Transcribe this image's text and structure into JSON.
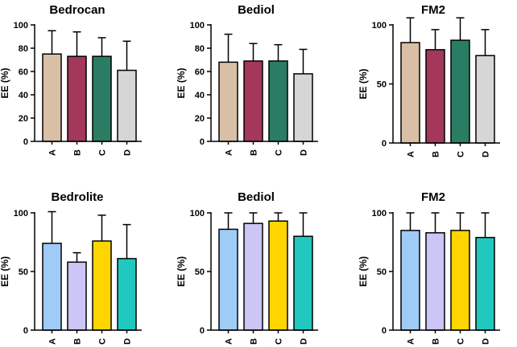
{
  "chart_data": [
    {
      "type": "bar",
      "title": "Bedrocan",
      "xlabel": "",
      "ylabel": "EE (%)",
      "ylim": [
        0,
        100
      ],
      "yticks": [
        0,
        20,
        40,
        60,
        80,
        100
      ],
      "categories": [
        "A",
        "B",
        "C",
        "D"
      ],
      "values": [
        75,
        73,
        73,
        61
      ],
      "errors": [
        20,
        21,
        16,
        25
      ],
      "colors": [
        "#d8bfa6",
        "#a3385a",
        "#2a7d62",
        "#d6d6d6"
      ]
    },
    {
      "type": "bar",
      "title": "Bediol",
      "xlabel": "",
      "ylabel": "EE (%)",
      "ylim": [
        0,
        100
      ],
      "yticks": [
        0,
        20,
        40,
        60,
        80,
        100
      ],
      "categories": [
        "A",
        "B",
        "C",
        "D"
      ],
      "values": [
        68,
        69,
        69,
        58
      ],
      "errors": [
        24,
        15,
        14,
        21
      ],
      "colors": [
        "#d8bfa6",
        "#a3385a",
        "#2a7d62",
        "#d6d6d6"
      ]
    },
    {
      "type": "bar",
      "title": "FM2",
      "xlabel": "",
      "ylabel": "EE (%)",
      "ylim": [
        0,
        105
      ],
      "yticks": [
        0,
        50,
        100
      ],
      "categories": [
        "A",
        "B",
        "C",
        "D"
      ],
      "values": [
        85,
        79,
        87,
        74
      ],
      "errors": [
        21,
        17,
        19,
        22
      ],
      "colors": [
        "#d8bfa6",
        "#a3385a",
        "#2a7d62",
        "#d6d6d6"
      ]
    },
    {
      "type": "bar",
      "title": "Bedrolite",
      "xlabel": "",
      "ylabel": "EE (%)",
      "ylim": [
        0,
        100
      ],
      "yticks": [
        0,
        50,
        100
      ],
      "categories": [
        "A",
        "B",
        "C",
        "D"
      ],
      "values": [
        74,
        58,
        76,
        61
      ],
      "errors": [
        27,
        8,
        22,
        29
      ],
      "colors": [
        "#9fcbf7",
        "#cbc6f5",
        "#ffd500",
        "#20c8c0"
      ]
    },
    {
      "type": "bar",
      "title": "Bediol",
      "xlabel": "",
      "ylabel": "EE (%)",
      "ylim": [
        0,
        100
      ],
      "yticks": [
        0,
        50,
        100
      ],
      "categories": [
        "A",
        "B",
        "C",
        "D"
      ],
      "values": [
        86,
        91,
        93,
        80
      ],
      "errors": [
        14,
        9,
        7,
        20
      ],
      "colors": [
        "#9fcbf7",
        "#cbc6f5",
        "#ffd500",
        "#20c8c0"
      ]
    },
    {
      "type": "bar",
      "title": "FM2",
      "xlabel": "",
      "ylabel": "EE (%)",
      "ylim": [
        0,
        100
      ],
      "yticks": [
        0,
        50,
        100
      ],
      "categories": [
        "A",
        "B",
        "C",
        "D"
      ],
      "values": [
        85,
        83,
        85,
        79
      ],
      "errors": [
        15,
        17,
        15,
        21
      ],
      "colors": [
        "#9fcbf7",
        "#cbc6f5",
        "#ffd500",
        "#20c8c0"
      ]
    }
  ]
}
